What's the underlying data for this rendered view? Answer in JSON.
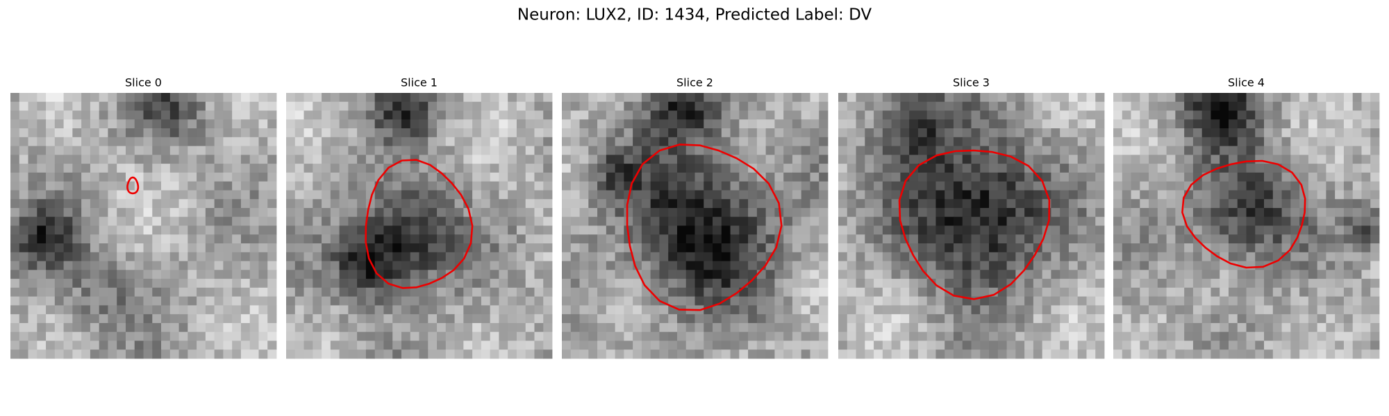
{
  "figure": {
    "title": "Neuron: LUX2, ID: 1434, Predicted Label: DV",
    "panels": [
      {
        "title": "Slice 0"
      },
      {
        "title": "Slice 1"
      },
      {
        "title": "Slice 2"
      },
      {
        "title": "Slice 3"
      },
      {
        "title": "Slice 4"
      }
    ]
  }
}
